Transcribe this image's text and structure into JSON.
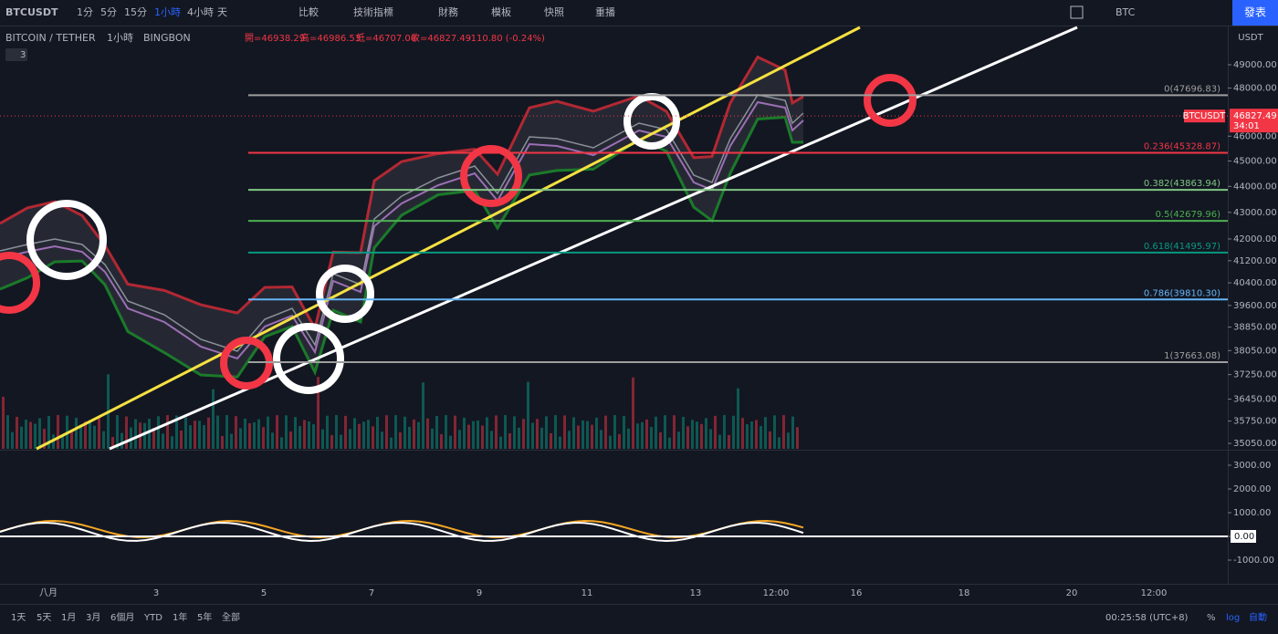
{
  "toolbar": {
    "symbol": "BTCUSDT",
    "intervals": [
      "1分",
      "5分",
      "15分",
      "1小時",
      "4小時",
      "天"
    ],
    "active_interval": 3,
    "tools": [
      "比較",
      "技術指標",
      "財務",
      "模板",
      "快照",
      "重播"
    ],
    "currency": "BTC",
    "publish": "發表"
  },
  "legend": {
    "name": "BITCOIN / TETHER",
    "interval": "1小時",
    "exchange": "BINGBON",
    "ohlc": [
      "開=46938.29",
      "高=46986.53",
      "低=46707.06",
      "收=46827.49"
    ],
    "change": "-110.80 (-0.24%)",
    "indicator_count": "3"
  },
  "price_axis": {
    "currency": "USDT",
    "ticks": [
      {
        "value": 49000,
        "label": "49000.00"
      },
      {
        "value": 48000,
        "label": "48000.00"
      },
      {
        "value": 46000,
        "label": "46000.00"
      },
      {
        "value": 45000,
        "label": "45000.00"
      },
      {
        "value": 44000,
        "label": "44000.00"
      },
      {
        "value": 43000,
        "label": "43000.00"
      },
      {
        "value": 42000,
        "label": "42000.00"
      },
      {
        "value": 41200,
        "label": "41200.00"
      },
      {
        "value": 40400,
        "label": "40400.00"
      },
      {
        "value": 39600,
        "label": "39600.00"
      },
      {
        "value": 38850,
        "label": "38850.00"
      },
      {
        "value": 38050,
        "label": "38050.00"
      },
      {
        "value": 37250,
        "label": "37250.00"
      },
      {
        "value": 36450,
        "label": "36450.00"
      },
      {
        "value": 35750,
        "label": "35750.00"
      },
      {
        "value": 35050,
        "label": "35050.00"
      }
    ],
    "last_price": {
      "symbol": "BTCUSDT",
      "value": 46827.49,
      "label": "46827.49",
      "countdown": "34:01"
    }
  },
  "fib_levels": [
    {
      "value": 47696.83,
      "label": "0(47696.83)",
      "color": "#9e9e9e"
    },
    {
      "value": 45328.87,
      "label": "0.236(45328.87)",
      "color": "#f23645"
    },
    {
      "value": 43863.94,
      "label": "0.382(43863.94)",
      "color": "#81c784"
    },
    {
      "value": 42679.96,
      "label": "0.5(42679.96)",
      "color": "#4caf50"
    },
    {
      "value": 41495.97,
      "label": "0.618(41495.97)",
      "color": "#089981"
    },
    {
      "value": 39810.3,
      "label": "0.786(39810.30)",
      "color": "#64b5f6"
    },
    {
      "value": 37663.08,
      "label": "1(37663.08)",
      "color": "#9e9e9e"
    }
  ],
  "macd_axis": {
    "ticks": [
      {
        "value": 3000,
        "label": "3000.00"
      },
      {
        "value": 2000,
        "label": "2000.00"
      },
      {
        "value": 1000,
        "label": "1000.00"
      },
      {
        "value": 0,
        "label": "0.00"
      },
      {
        "value": -1000,
        "label": "-1000.00"
      }
    ]
  },
  "time_axis": [
    "八月",
    "3",
    "5",
    "7",
    "9",
    "11",
    "13",
    "12:00",
    "16",
    "18",
    "20",
    "12:00"
  ],
  "bottom_bar": {
    "ranges": [
      "1天",
      "5天",
      "1月",
      "3月",
      "6個月",
      "YTD",
      "1年",
      "5年",
      "全部"
    ],
    "clock": "00:25:58 (UTC+8)",
    "options": [
      "%",
      "log",
      "自動"
    ]
  }
}
